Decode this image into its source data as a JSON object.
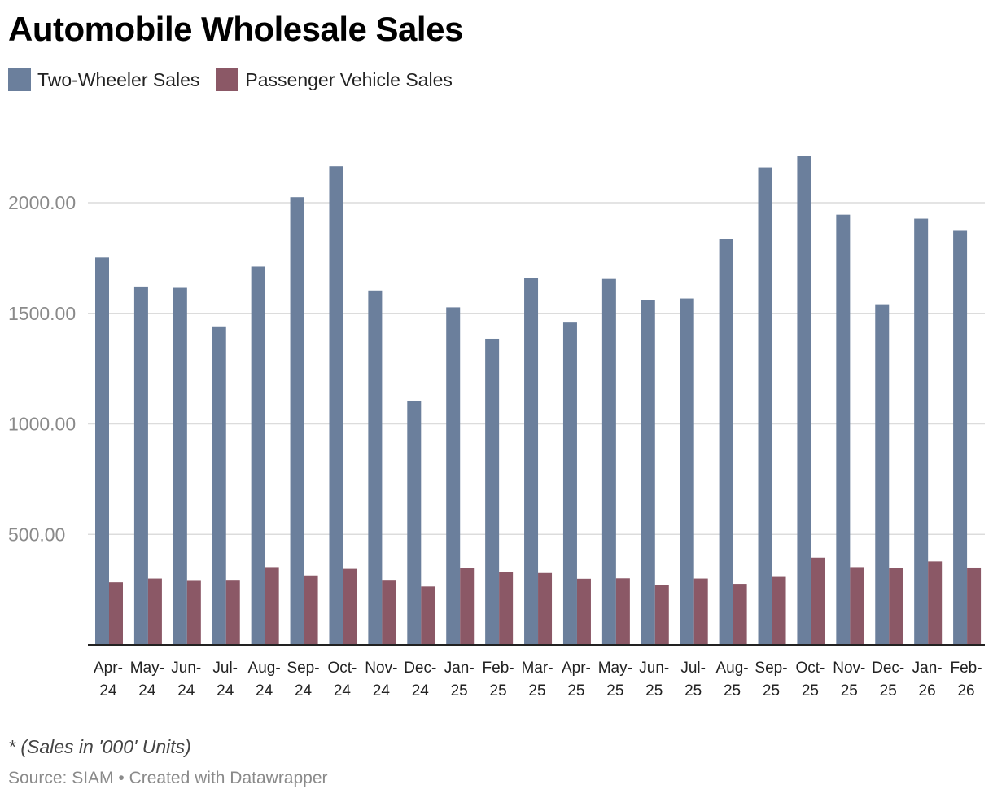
{
  "chart_data": {
    "type": "bar",
    "title": "Automobile Wholesale Sales",
    "categories": [
      "Apr-24",
      "May-24",
      "Jun-24",
      "Jul-24",
      "Aug-24",
      "Sep-24",
      "Oct-24",
      "Nov-24",
      "Dec-24",
      "Jan-25",
      "Feb-25",
      "Mar-25",
      "Apr-25",
      "May-25",
      "Jun-25",
      "Jul-25",
      "Aug-25",
      "Sep-25",
      "Oct-25",
      "Nov-25",
      "Dec-25",
      "Jan-26",
      "Feb-26"
    ],
    "series": [
      {
        "name": "Two-Wheeler Sales",
        "color": "#6b7f9c",
        "values": [
          1752,
          1621,
          1615,
          1441,
          1711,
          2025,
          2165,
          1603,
          1105,
          1527,
          1385,
          1661,
          1458,
          1655,
          1560,
          1567,
          1836,
          2160,
          2211,
          1946,
          1541,
          1928,
          1873
        ]
      },
      {
        "name": "Passenger Vehicle Sales",
        "color": "#8b5866",
        "values": [
          283,
          300,
          293,
          294,
          352,
          314,
          344,
          294,
          264,
          348,
          330,
          325,
          299,
          301,
          272,
          300,
          276,
          311,
          395,
          352,
          348,
          378,
          350
        ]
      }
    ],
    "yticks": [
      500,
      1000,
      1500,
      2000
    ],
    "ytick_labels": [
      "500.00",
      "1000.00",
      "1500.00",
      "2000.00"
    ],
    "ylim": [
      0,
      2400
    ],
    "xlabel": "",
    "ylabel": "",
    "legend_position": "top-left",
    "grid": true
  },
  "note": "* (Sales in '000' Units)",
  "source": "Source: SIAM • Created with Datawrapper"
}
